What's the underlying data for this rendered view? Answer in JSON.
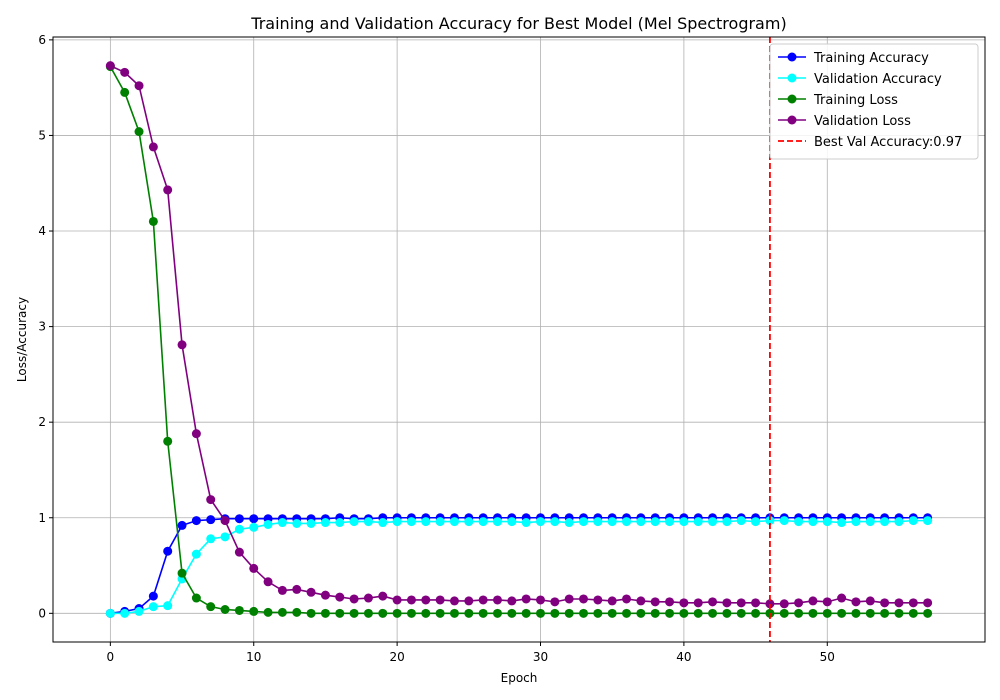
{
  "chart_data": {
    "type": "line",
    "title": "Training and Validation Accuracy for Best Model (Mel Spectrogram)",
    "xlabel": "Epoch",
    "ylabel": "Loss/Accuracy",
    "xlim": [
      -4,
      61
    ],
    "ylim": [
      -0.3,
      6.03
    ],
    "x_ticks": [
      0,
      10,
      20,
      30,
      40,
      50
    ],
    "y_ticks": [
      0,
      1,
      2,
      3,
      4,
      5,
      6
    ],
    "grid": true,
    "legend_position": "top-right",
    "series": [
      {
        "name": "Training Accuracy",
        "color": "#0000ff",
        "marker": "circle",
        "values": [
          0.0,
          0.02,
          0.05,
          0.18,
          0.65,
          0.92,
          0.97,
          0.98,
          0.99,
          0.99,
          0.99,
          0.99,
          0.99,
          0.99,
          0.99,
          0.99,
          1.0,
          0.99,
          0.99,
          1.0,
          1.0,
          1.0,
          1.0,
          1.0,
          1.0,
          1.0,
          1.0,
          1.0,
          1.0,
          1.0,
          1.0,
          1.0,
          1.0,
          1.0,
          1.0,
          1.0,
          1.0,
          1.0,
          1.0,
          1.0,
          1.0,
          1.0,
          1.0,
          1.0,
          1.0,
          1.0,
          1.0,
          1.0,
          1.0,
          1.0,
          1.0,
          1.0,
          1.0,
          1.0,
          1.0,
          1.0,
          1.0,
          1.0
        ]
      },
      {
        "name": "Validation Accuracy",
        "color": "#00ffff",
        "marker": "circle",
        "values": [
          0.0,
          0.0,
          0.02,
          0.07,
          0.08,
          0.36,
          0.62,
          0.78,
          0.8,
          0.88,
          0.9,
          0.93,
          0.95,
          0.94,
          0.94,
          0.95,
          0.95,
          0.96,
          0.96,
          0.95,
          0.96,
          0.96,
          0.96,
          0.96,
          0.96,
          0.96,
          0.96,
          0.96,
          0.96,
          0.95,
          0.96,
          0.96,
          0.95,
          0.96,
          0.96,
          0.96,
          0.96,
          0.96,
          0.96,
          0.96,
          0.96,
          0.96,
          0.96,
          0.96,
          0.97,
          0.96,
          0.97,
          0.97,
          0.96,
          0.96,
          0.96,
          0.95,
          0.96,
          0.96,
          0.96,
          0.96,
          0.97,
          0.97
        ]
      },
      {
        "name": "Training Loss",
        "color": "#008000",
        "marker": "circle",
        "values": [
          5.72,
          5.45,
          5.04,
          4.1,
          1.8,
          0.42,
          0.16,
          0.07,
          0.04,
          0.03,
          0.02,
          0.01,
          0.01,
          0.01,
          0.0,
          0.0,
          0.0,
          0.0,
          0.0,
          0.0,
          0.0,
          0.0,
          0.0,
          0.0,
          0.0,
          0.0,
          0.0,
          0.0,
          0.0,
          0.0,
          0.0,
          0.0,
          0.0,
          0.0,
          0.0,
          0.0,
          0.0,
          0.0,
          0.0,
          0.0,
          0.0,
          0.0,
          0.0,
          0.0,
          0.0,
          0.0,
          0.0,
          0.0,
          0.0,
          0.0,
          0.0,
          0.0,
          0.0,
          0.0,
          0.0,
          0.0,
          0.0,
          0.0
        ]
      },
      {
        "name": "Validation Loss",
        "color": "#800080",
        "marker": "circle",
        "values": [
          5.73,
          5.66,
          5.52,
          4.88,
          4.43,
          2.81,
          1.88,
          1.19,
          0.97,
          0.64,
          0.47,
          0.33,
          0.24,
          0.25,
          0.22,
          0.19,
          0.17,
          0.15,
          0.16,
          0.18,
          0.14,
          0.14,
          0.14,
          0.14,
          0.13,
          0.13,
          0.14,
          0.14,
          0.13,
          0.15,
          0.14,
          0.12,
          0.15,
          0.15,
          0.14,
          0.13,
          0.15,
          0.13,
          0.12,
          0.12,
          0.11,
          0.11,
          0.12,
          0.11,
          0.11,
          0.11,
          0.1,
          0.1,
          0.11,
          0.13,
          0.12,
          0.16,
          0.12,
          0.13,
          0.11,
          0.11,
          0.11,
          0.11
        ]
      }
    ],
    "vline": {
      "name": "Best Val Accuracy:0.97",
      "x": 46,
      "color": "#ff0000",
      "style": "dashed"
    }
  }
}
